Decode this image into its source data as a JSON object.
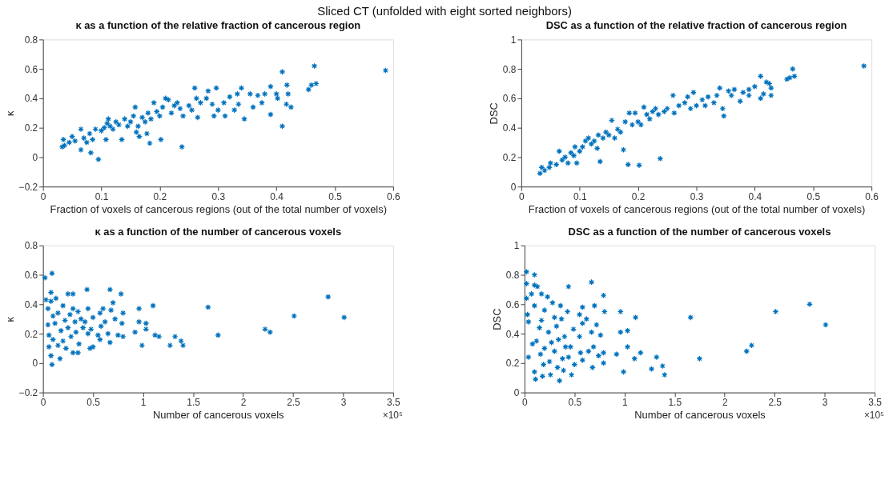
{
  "chart_data": [
    {
      "type": "scatter",
      "title": "κ as a function of the relative fraction of cancerous region",
      "xlabel": "Fraction of voxels of cancerous regions (out of the total number of voxels)",
      "ylabel": "κ",
      "annotations": [
        "Sliced CT (unfolded with eight sorted neighbors)"
      ],
      "marker": "cross",
      "xlim": [
        0,
        0.6
      ],
      "ylim": [
        -0.2,
        0.8
      ],
      "xticks": [
        0,
        0.1,
        0.2,
        0.3,
        0.4,
        0.5,
        0.6
      ],
      "yticks": [
        -0.2,
        0,
        0.2,
        0.4,
        0.6,
        0.8
      ],
      "x": [
        0.033,
        0.035,
        0.037,
        0.045,
        0.05,
        0.055,
        0.065,
        0.065,
        0.07,
        0.075,
        0.08,
        0.082,
        0.085,
        0.09,
        0.095,
        0.1,
        0.105,
        0.108,
        0.11,
        0.112,
        0.115,
        0.12,
        0.125,
        0.13,
        0.135,
        0.14,
        0.145,
        0.15,
        0.155,
        0.158,
        0.16,
        0.163,
        0.165,
        0.17,
        0.175,
        0.178,
        0.18,
        0.183,
        0.185,
        0.19,
        0.195,
        0.2,
        0.202,
        0.205,
        0.21,
        0.215,
        0.22,
        0.225,
        0.23,
        0.235,
        0.238,
        0.24,
        0.25,
        0.255,
        0.26,
        0.263,
        0.265,
        0.27,
        0.28,
        0.283,
        0.29,
        0.293,
        0.297,
        0.3,
        0.31,
        0.312,
        0.32,
        0.328,
        0.333,
        0.335,
        0.34,
        0.345,
        0.355,
        0.36,
        0.368,
        0.375,
        0.38,
        0.39,
        0.39,
        0.4,
        0.402,
        0.41,
        0.41,
        0.417,
        0.418,
        0.42,
        0.425,
        0.455,
        0.46,
        0.465,
        0.468,
        0.587
      ],
      "series": [
        {
          "color": "#0072bd",
          "values": [
            0.07,
            0.12,
            0.08,
            0.1,
            0.14,
            0.11,
            0.19,
            0.05,
            0.13,
            0.1,
            0.16,
            0.03,
            0.12,
            0.19,
            -0.015,
            0.18,
            0.2,
            0.12,
            0.23,
            0.26,
            0.21,
            0.19,
            0.24,
            0.22,
            0.12,
            0.26,
            0.21,
            0.24,
            0.28,
            0.34,
            0.17,
            0.21,
            0.14,
            0.27,
            0.24,
            0.16,
            0.3,
            0.095,
            0.26,
            0.37,
            0.31,
            0.28,
            0.12,
            0.34,
            0.4,
            0.39,
            0.3,
            0.35,
            0.37,
            0.33,
            0.07,
            0.28,
            0.35,
            0.32,
            0.47,
            0.4,
            0.27,
            0.37,
            0.4,
            0.45,
            0.36,
            0.28,
            0.47,
            0.32,
            0.37,
            0.28,
            0.41,
            0.32,
            0.43,
            0.36,
            0.47,
            0.26,
            0.43,
            0.34,
            0.42,
            0.37,
            0.43,
            0.48,
            0.29,
            0.43,
            0.4,
            0.58,
            0.21,
            0.36,
            0.49,
            0.43,
            0.34,
            0.46,
            0.49,
            0.62,
            0.5,
            0.59
          ]
        }
      ]
    },
    {
      "type": "scatter",
      "title": "DSC as a function of the relative fraction of cancerous region",
      "xlabel": "Fraction of voxels of cancerous regions (out of the total number of voxels)",
      "ylabel": "DSC",
      "marker": "cross",
      "xlim": [
        0,
        0.6
      ],
      "ylim": [
        0,
        1
      ],
      "xticks": [
        0,
        0.1,
        0.2,
        0.3,
        0.4,
        0.5,
        0.6
      ],
      "yticks": [
        0,
        0.2,
        0.4,
        0.6,
        0.8,
        1
      ],
      "x": [
        0.032,
        0.035,
        0.04,
        0.048,
        0.05,
        0.06,
        0.065,
        0.07,
        0.075,
        0.08,
        0.085,
        0.09,
        0.092,
        0.095,
        0.1,
        0.105,
        0.11,
        0.115,
        0.12,
        0.125,
        0.13,
        0.132,
        0.135,
        0.14,
        0.145,
        0.15,
        0.155,
        0.16,
        0.165,
        0.17,
        0.175,
        0.178,
        0.183,
        0.185,
        0.19,
        0.195,
        0.2,
        0.202,
        0.205,
        0.21,
        0.215,
        0.22,
        0.225,
        0.23,
        0.235,
        0.238,
        0.245,
        0.25,
        0.26,
        0.262,
        0.27,
        0.28,
        0.285,
        0.29,
        0.295,
        0.3,
        0.31,
        0.315,
        0.32,
        0.33,
        0.335,
        0.34,
        0.345,
        0.347,
        0.355,
        0.36,
        0.365,
        0.375,
        0.38,
        0.39,
        0.39,
        0.4,
        0.41,
        0.41,
        0.415,
        0.42,
        0.425,
        0.428,
        0.428,
        0.455,
        0.46,
        0.465,
        0.468,
        0.587
      ],
      "series": [
        {
          "color": "#0072bd",
          "values": [
            0.09,
            0.13,
            0.11,
            0.13,
            0.16,
            0.15,
            0.24,
            0.18,
            0.2,
            0.16,
            0.23,
            0.21,
            0.27,
            0.16,
            0.24,
            0.27,
            0.31,
            0.33,
            0.29,
            0.31,
            0.26,
            0.35,
            0.17,
            0.33,
            0.37,
            0.35,
            0.45,
            0.33,
            0.39,
            0.37,
            0.25,
            0.44,
            0.15,
            0.5,
            0.42,
            0.5,
            0.44,
            0.145,
            0.42,
            0.54,
            0.49,
            0.46,
            0.51,
            0.53,
            0.49,
            0.19,
            0.51,
            0.53,
            0.62,
            0.5,
            0.55,
            0.57,
            0.61,
            0.53,
            0.64,
            0.55,
            0.59,
            0.55,
            0.61,
            0.57,
            0.62,
            0.67,
            0.53,
            0.48,
            0.65,
            0.62,
            0.66,
            0.58,
            0.64,
            0.66,
            0.62,
            0.68,
            0.75,
            0.6,
            0.63,
            0.71,
            0.7,
            0.67,
            0.62,
            0.73,
            0.74,
            0.8,
            0.75,
            0.82
          ]
        }
      ]
    },
    {
      "type": "scatter",
      "title": "κ as a function of the number of cancerous voxels",
      "xlabel": "Number of cancerous voxels",
      "ylabel": "κ",
      "annotations": [
        "×10⁵"
      ],
      "marker": "cross",
      "xlim": [
        0,
        3.5
      ],
      "ylim": [
        -0.2,
        0.8
      ],
      "xticks": [
        0,
        0.5,
        1,
        1.5,
        2,
        2.5,
        3,
        3.5
      ],
      "yticks": [
        -0.2,
        0,
        0.2,
        0.4,
        0.6,
        0.8
      ],
      "x": [
        0.02,
        0.03,
        0.05,
        0.05,
        0.06,
        0.06,
        0.08,
        0.09,
        0.08,
        0.09,
        0.08,
        0.1,
        0.1,
        0.12,
        0.13,
        0.15,
        0.15,
        0.17,
        0.18,
        0.2,
        0.2,
        0.22,
        0.23,
        0.25,
        0.25,
        0.27,
        0.28,
        0.3,
        0.3,
        0.3,
        0.32,
        0.33,
        0.35,
        0.36,
        0.35,
        0.38,
        0.4,
        0.42,
        0.44,
        0.45,
        0.45,
        0.47,
        0.48,
        0.5,
        0.5,
        0.55,
        0.57,
        0.57,
        0.58,
        0.6,
        0.62,
        0.65,
        0.67,
        0.67,
        0.68,
        0.7,
        0.72,
        0.75,
        0.78,
        0.79,
        0.8,
        0.8,
        0.92,
        0.96,
        0.96,
        0.99,
        1.03,
        1.03,
        1.1,
        1.12,
        1.16,
        1.27,
        1.32,
        1.38,
        1.4,
        1.65,
        1.75,
        2.22,
        2.27,
        2.51,
        2.85,
        3.01
      ],
      "series": [
        {
          "color": "#0072bd",
          "values": [
            0.58,
            0.43,
            0.37,
            0.26,
            0.19,
            0.11,
            0.42,
            0.61,
            0.05,
            -0.01,
            0.48,
            0.32,
            0.16,
            0.27,
            0.44,
            0.12,
            0.34,
            0.03,
            0.22,
            0.39,
            0.15,
            0.29,
            0.1,
            0.47,
            0.24,
            0.33,
            0.18,
            0.37,
            0.07,
            0.47,
            0.28,
            0.21,
            0.35,
            0.13,
            0.07,
            0.3,
            0.24,
            0.28,
            0.5,
            0.37,
            0.2,
            0.1,
            0.23,
            0.11,
            0.31,
            0.19,
            0.34,
            0.16,
            0.25,
            0.37,
            0.28,
            0.2,
            0.5,
            0.14,
            0.36,
            0.41,
            0.3,
            0.19,
            0.47,
            0.27,
            0.34,
            0.18,
            0.21,
            0.37,
            0.28,
            0.12,
            0.27,
            0.23,
            0.39,
            0.19,
            0.18,
            0.12,
            0.18,
            0.15,
            0.12,
            0.38,
            0.19,
            0.23,
            0.21,
            0.32,
            0.45,
            0.31
          ]
        }
      ]
    },
    {
      "type": "scatter",
      "title": "DSC as a function of the number of cancerous voxels",
      "xlabel": "Number of cancerous voxels",
      "ylabel": "DSC",
      "annotations": [
        "×10⁵"
      ],
      "marker": "cross",
      "xlim": [
        0,
        3.5
      ],
      "ylim": [
        0,
        1
      ],
      "xticks": [
        0,
        0.5,
        1,
        1.5,
        2,
        2.5,
        3,
        3.5
      ],
      "yticks": [
        0,
        0.2,
        0.4,
        0.6,
        0.8,
        1
      ],
      "x": [
        0.02,
        0.02,
        0.02,
        0.03,
        0.04,
        0.04,
        0.07,
        0.08,
        0.1,
        0.1,
        0.1,
        0.1,
        0.11,
        0.12,
        0.13,
        0.15,
        0.16,
        0.17,
        0.17,
        0.18,
        0.19,
        0.2,
        0.2,
        0.23,
        0.24,
        0.25,
        0.26,
        0.27,
        0.28,
        0.3,
        0.3,
        0.32,
        0.33,
        0.34,
        0.35,
        0.36,
        0.37,
        0.38,
        0.39,
        0.4,
        0.41,
        0.43,
        0.44,
        0.44,
        0.46,
        0.47,
        0.49,
        0.5,
        0.55,
        0.55,
        0.56,
        0.58,
        0.58,
        0.58,
        0.62,
        0.64,
        0.67,
        0.67,
        0.68,
        0.69,
        0.7,
        0.72,
        0.74,
        0.76,
        0.79,
        0.79,
        0.79,
        0.8,
        0.92,
        0.96,
        0.96,
        0.99,
        1.03,
        1.03,
        1.1,
        1.11,
        1.16,
        1.27,
        1.32,
        1.38,
        1.4,
        1.66,
        1.75,
        2.22,
        2.27,
        2.51,
        2.85,
        3.01
      ],
      "series": [
        {
          "color": "#0072bd",
          "values": [
            0.82,
            0.74,
            0.64,
            0.53,
            0.48,
            0.24,
            0.67,
            0.33,
            0.8,
            0.73,
            0.14,
            0.59,
            0.09,
            0.35,
            0.72,
            0.44,
            0.26,
            0.49,
            0.67,
            0.11,
            0.19,
            0.3,
            0.56,
            0.65,
            0.41,
            0.21,
            0.12,
            0.34,
            0.61,
            0.51,
            0.28,
            0.45,
            0.17,
            0.36,
            0.08,
            0.59,
            0.5,
            0.23,
            0.15,
            0.38,
            0.31,
            0.55,
            0.72,
            0.24,
            0.31,
            0.12,
            0.43,
            0.19,
            0.53,
            0.38,
            0.27,
            0.58,
            0.47,
            0.22,
            0.5,
            0.28,
            0.75,
            0.41,
            0.17,
            0.31,
            0.59,
            0.46,
            0.25,
            0.39,
            0.66,
            0.27,
            0.2,
            0.55,
            0.26,
            0.55,
            0.41,
            0.14,
            0.42,
            0.31,
            0.23,
            0.51,
            0.27,
            0.16,
            0.24,
            0.18,
            0.12,
            0.51,
            0.23,
            0.28,
            0.32,
            0.55,
            0.6,
            0.46
          ]
        }
      ]
    }
  ]
}
